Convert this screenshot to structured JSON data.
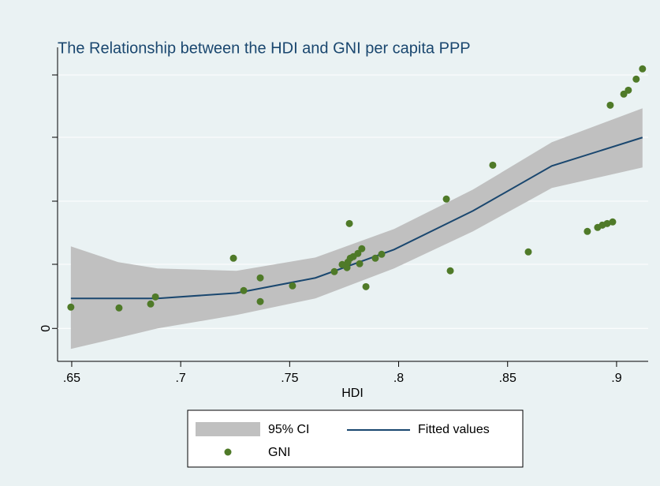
{
  "chart_data": {
    "type": "scatter",
    "title": "The Relationship between the HDI and GNI per capita PPP",
    "xlabel": "HDI",
    "xlim": [
      0.6435,
      0.9145
    ],
    "xticks": [
      {
        "value": 0.65,
        "label": ".65"
      },
      {
        "value": 0.7,
        "label": ".7"
      },
      {
        "value": 0.75,
        "label": ".75"
      },
      {
        "value": 0.8,
        "label": ".8"
      },
      {
        "value": 0.85,
        "label": ".85"
      },
      {
        "value": 0.9,
        "label": ".9"
      }
    ],
    "ylim": [
      -5200,
      44400
    ],
    "yticks": [
      0
    ],
    "grid": true,
    "ci": {
      "name": "95% CI",
      "color": "#c0c0c0",
      "x": [
        0.6496,
        0.6713,
        0.6894,
        0.7256,
        0.7618,
        0.7979,
        0.8341,
        0.8703,
        0.9119
      ],
      "lower": [
        -3240,
        -1500,
        0,
        2120,
        4740,
        9470,
        15330,
        22180,
        25420
      ],
      "upper": [
        12960,
        10470,
        9470,
        9100,
        11210,
        15700,
        21930,
        29410,
        34770
      ]
    },
    "fit": {
      "name": "Fitted values",
      "color": "#1a476f",
      "x": [
        0.6496,
        0.6894,
        0.7256,
        0.7618,
        0.7979,
        0.8341,
        0.8703,
        0.9119
      ],
      "values": [
        4740,
        4740,
        5600,
        7980,
        12460,
        18570,
        25670,
        30160
      ]
    },
    "series": [
      {
        "name": "GNI",
        "color": "#4f7a28",
        "x": [
          0.6496,
          0.6717,
          0.6862,
          0.6884,
          0.7242,
          0.7289,
          0.7365,
          0.7365,
          0.7513,
          0.7705,
          0.7741,
          0.7763,
          0.7767,
          0.7778,
          0.7792,
          0.7774,
          0.7813,
          0.7821,
          0.7831,
          0.785,
          0.7893,
          0.7922,
          0.8219,
          0.8237,
          0.8432,
          0.8595,
          0.8866,
          0.8913,
          0.8935,
          0.8957,
          0.8982,
          0.8971,
          0.9033,
          0.9054,
          0.909,
          0.9119
        ],
        "values": [
          3364,
          3240,
          3860,
          4980,
          11090,
          5980,
          7980,
          4240,
          6730,
          8970,
          10090,
          9600,
          10470,
          11090,
          11340,
          16570,
          11840,
          10220,
          12590,
          6600,
          11090,
          11710,
          20440,
          9100,
          25790,
          12090,
          15330,
          15950,
          16320,
          16570,
          16820,
          35260,
          37010,
          37630,
          39380,
          41000
        ]
      }
    ]
  }
}
